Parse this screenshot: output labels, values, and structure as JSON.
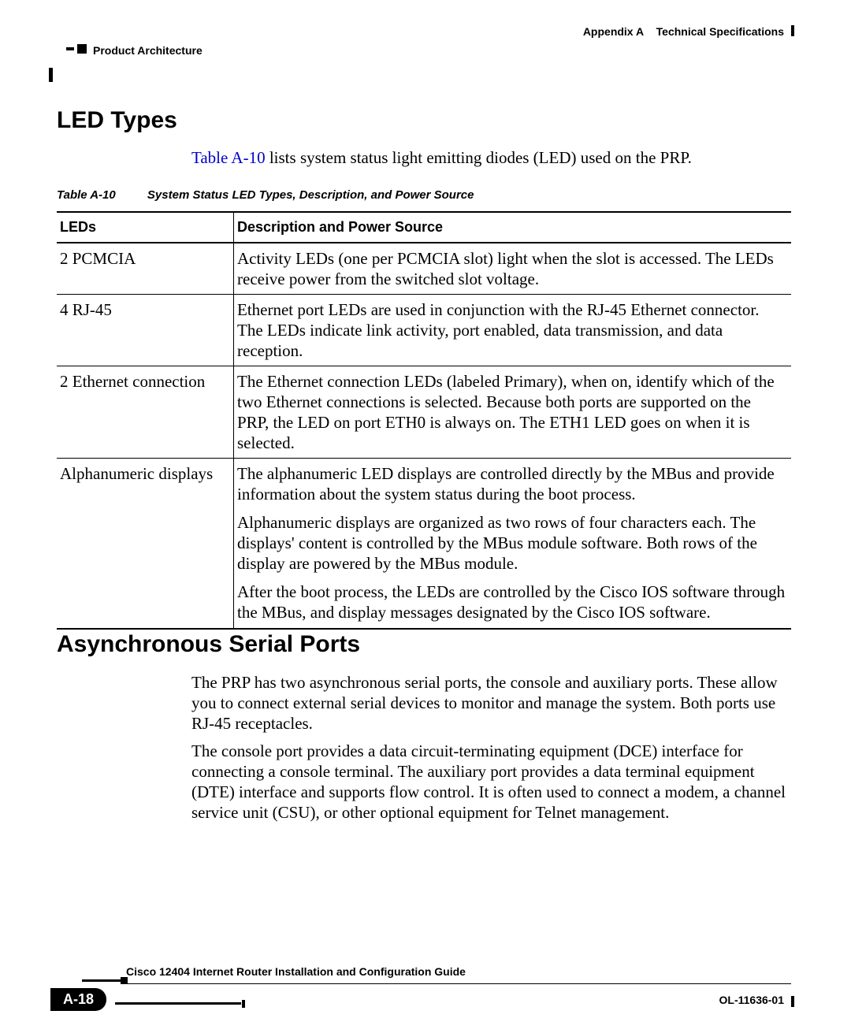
{
  "header": {
    "appendix": "Appendix A",
    "appendix_title": "Technical Specifications",
    "section": "Product Architecture"
  },
  "section1": {
    "title": "LED Types",
    "intro_link": "Table A-10",
    "intro_rest": " lists system status light emitting diodes (LED) used on the PRP."
  },
  "table": {
    "caption_num": "Table A-10",
    "caption_title": "System Status LED Types, Description, and Power Source",
    "headers": {
      "c1": "LEDs",
      "c2": "Description and Power Source"
    },
    "rows": [
      {
        "c1": "2 PCMCIA",
        "c2": "Activity LEDs (one per PCMCIA slot) light when the slot is accessed. The LEDs receive power from the switched slot voltage."
      },
      {
        "c1": "4 RJ-45",
        "c2": "Ethernet port LEDs are used in conjunction with the RJ-45 Ethernet connector. The LEDs indicate link activity, port enabled, data transmission, and data reception."
      },
      {
        "c1": "2 Ethernet connection",
        "c2": "The Ethernet connection LEDs (labeled Primary), when on, identify which of the two Ethernet connections is selected. Because both ports are supported on the PRP, the LED on port ETH0 is always on. The ETH1 LED goes on when it is selected."
      },
      {
        "c1": "Alphanumeric displays",
        "c2a": "The alphanumeric LED displays are controlled directly by the MBus and provide information about the system status during the boot process.",
        "c2b": "Alphanumeric displays are organized as two rows of four characters each. The displays' content is controlled by the MBus module software. Both rows of the display are powered by the MBus module.",
        "c2c": "After the boot process, the LEDs are controlled by the Cisco IOS software through the MBus, and display messages designated by the Cisco IOS software."
      }
    ]
  },
  "section2": {
    "title": "Asynchronous Serial Ports",
    "para1": "The PRP has two asynchronous serial ports, the console and auxiliary ports. These allow you to connect external serial devices to monitor and manage the system. Both ports use RJ-45 receptacles.",
    "para2": "The console port provides a data circuit-terminating equipment (DCE) interface for connecting a console terminal. The auxiliary port provides a data terminal equipment (DTE) interface and supports flow control. It is often used to connect a modem, a channel service unit (CSU), or other optional equipment for Telnet management."
  },
  "footer": {
    "guide_title": "Cisco 12404 Internet Router Installation and Configuration Guide",
    "page_num": "A-18",
    "doc_id": "OL-11636-01"
  }
}
